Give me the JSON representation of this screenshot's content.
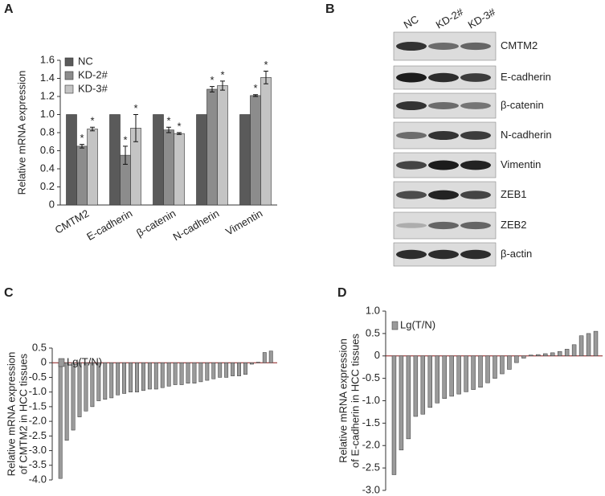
{
  "chart_data": [
    {
      "type": "bar",
      "panel": "A",
      "ylabel": "Relative mRNA expression",
      "categories": [
        "CMTM2",
        "E-cadherin",
        "β-catenin",
        "N-cadherin",
        "Vimentin"
      ],
      "series": [
        {
          "name": "NC",
          "color": "#5a5a5a",
          "values": [
            1,
            1,
            1,
            1,
            1
          ]
        },
        {
          "name": "KD-2#",
          "color": "#8c8c8c",
          "values": [
            0.65,
            0.55,
            0.83,
            1.28,
            1.21
          ],
          "errors": [
            0.02,
            0.1,
            0.03,
            0.03,
            0.01
          ],
          "markers": [
            "*",
            "*",
            "*",
            "*",
            "*"
          ]
        },
        {
          "name": "KD-3#",
          "color": "#c4c4c4",
          "values": [
            0.84,
            0.85,
            0.79,
            1.32,
            1.41
          ],
          "errors": [
            0.02,
            0.15,
            0.01,
            0.05,
            0.07
          ],
          "markers": [
            "*",
            "*",
            "*",
            "*",
            "*"
          ]
        }
      ],
      "ylim": [
        0,
        1.6
      ],
      "yticks": [
        0,
        0.2,
        0.4,
        0.6,
        0.8,
        {
          "value": 1,
          "label": "1.0"
        },
        1.2,
        1.4,
        1.6
      ]
    },
    {
      "type": "waterfall",
      "panel": "C",
      "ylabel": [
        "Relative mRNA expression",
        "of CMTM2 in HCC tissues"
      ],
      "series": [
        {
          "name": "Lg(T/N)",
          "color": "#9a9a9a",
          "values": [
            -3.95,
            -2.65,
            -2.3,
            -1.85,
            -1.65,
            -1.5,
            -1.3,
            -1.25,
            -1.2,
            -1.1,
            -1.05,
            -1.0,
            -1.0,
            -0.95,
            -0.9,
            -0.9,
            -0.85,
            -0.8,
            -0.75,
            -0.75,
            -0.7,
            -0.7,
            -0.65,
            -0.6,
            -0.55,
            -0.5,
            -0.5,
            -0.45,
            -0.45,
            -0.4,
            -0.05,
            0.02,
            0.35,
            0.4
          ]
        }
      ],
      "ylim": [
        -4.0,
        0.5
      ],
      "yticks": [
        0.5,
        0,
        -0.5,
        {
          "value": -1,
          "label": "-1.0"
        },
        -1.5,
        {
          "value": -2,
          "label": "-2.0"
        },
        -2.5,
        {
          "value": -3,
          "label": "-3.0"
        },
        -3.5,
        {
          "value": -4,
          "label": "-4.0"
        }
      ]
    },
    {
      "type": "waterfall",
      "panel": "D",
      "ylabel": [
        "Relative mRNA expression",
        "of E-cadherin in HCC tissues"
      ],
      "series": [
        {
          "name": "Lg(T/N)",
          "color": "#9a9a9a",
          "values": [
            -2.65,
            -2.1,
            -1.85,
            -1.35,
            -1.3,
            -1.15,
            -1.05,
            -0.95,
            -0.9,
            -0.85,
            -0.8,
            -0.75,
            -0.7,
            -0.6,
            -0.5,
            -0.4,
            -0.3,
            -0.15,
            -0.05,
            0.02,
            0.03,
            0.05,
            0.07,
            0.1,
            0.15,
            0.25,
            0.45,
            0.5,
            0.55
          ]
        }
      ],
      "ylim": [
        -3.0,
        1.0
      ],
      "yticks": [
        {
          "value": 1,
          "label": "1.0"
        },
        0.5,
        0,
        -0.5,
        {
          "value": -1,
          "label": "-1.0"
        },
        -1.5,
        {
          "value": -2,
          "label": "-2.0"
        },
        -2.5,
        {
          "value": -3,
          "label": "-3.0"
        }
      ]
    }
  ],
  "blot": {
    "panel": "B",
    "lanes": [
      "NC",
      "KD-2#",
      "KD-3#"
    ],
    "proteins": [
      "CMTM2",
      "E-cadherin",
      "β-catenin",
      "N-cadherin",
      "Vimentin",
      "ZEB1",
      "ZEB2",
      "β-actin"
    ]
  }
}
